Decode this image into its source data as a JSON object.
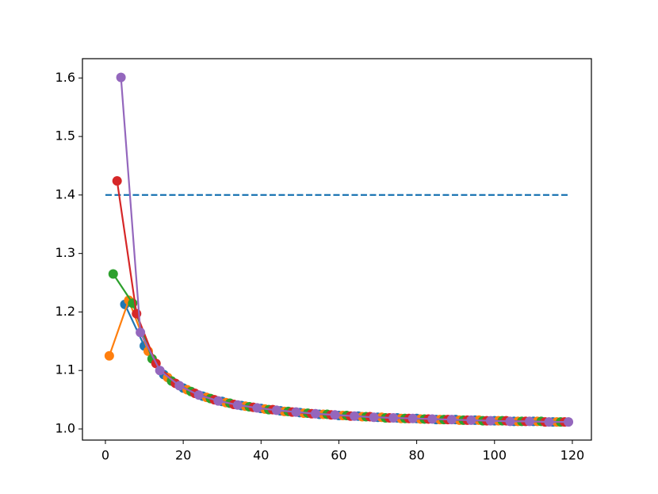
{
  "chart_data": {
    "type": "line",
    "xlim": [
      -5.9,
      124.9
    ],
    "ylim": [
      0.981,
      1.633
    ],
    "xticks": [
      0,
      20,
      40,
      60,
      80,
      100,
      120
    ],
    "yticks": [
      {
        "value": 1,
        "label": "1.0"
      },
      1.1,
      1.2,
      1.3,
      1.4,
      1.5,
      1.6
    ],
    "series": [
      {
        "color": "#1f77b4",
        "linestyle": "dashed",
        "marker": false,
        "x": [
          0,
          119
        ],
        "values": [
          1.4,
          1.4
        ]
      },
      {
        "color": "#1f77b4",
        "linestyle": "solid",
        "marker": true,
        "x": [
          5,
          10,
          15,
          20,
          25,
          30,
          35,
          40,
          45,
          50,
          55,
          60,
          65,
          70,
          75,
          80,
          85,
          90,
          95,
          100,
          105,
          110,
          115
        ],
        "values": [
          1.213,
          1.142,
          1.093,
          1.07,
          1.056,
          1.047,
          1.04,
          1.035,
          1.031,
          1.028,
          1.025,
          1.023,
          1.022,
          1.02,
          1.019,
          1.018,
          1.016,
          1.016,
          1.015,
          1.014,
          1.013,
          1.013,
          1.012
        ]
      },
      {
        "color": "#ff7f0e",
        "linestyle": "solid",
        "marker": true,
        "x": [
          1,
          6,
          11,
          16,
          21,
          26,
          31,
          36,
          41,
          46,
          51,
          56,
          61,
          66,
          71,
          76,
          81,
          86,
          91,
          96,
          101,
          106,
          111,
          116
        ],
        "values": [
          1.125,
          1.22,
          1.133,
          1.088,
          1.067,
          1.054,
          1.045,
          1.039,
          1.034,
          1.03,
          1.027,
          1.025,
          1.023,
          1.021,
          1.02,
          1.018,
          1.017,
          1.016,
          1.015,
          1.015,
          1.014,
          1.013,
          1.013,
          1.012
        ]
      },
      {
        "color": "#2ca02c",
        "linestyle": "solid",
        "marker": true,
        "x": [
          2,
          7,
          12,
          17,
          22,
          27,
          32,
          37,
          42,
          47,
          52,
          57,
          62,
          67,
          72,
          77,
          82,
          87,
          92,
          97,
          102,
          107,
          112,
          117
        ],
        "values": [
          1.265,
          1.215,
          1.12,
          1.082,
          1.064,
          1.052,
          1.044,
          1.038,
          1.033,
          1.03,
          1.027,
          1.025,
          1.023,
          1.021,
          1.019,
          1.018,
          1.017,
          1.016,
          1.015,
          1.014,
          1.014,
          1.013,
          1.013,
          1.012
        ]
      },
      {
        "color": "#d62728",
        "linestyle": "solid",
        "marker": true,
        "x": [
          3,
          8,
          13,
          18,
          23,
          28,
          33,
          38,
          43,
          48,
          53,
          58,
          63,
          68,
          73,
          78,
          83,
          88,
          93,
          98,
          103,
          108,
          113,
          118
        ],
        "values": [
          1.424,
          1.197,
          1.112,
          1.078,
          1.061,
          1.05,
          1.042,
          1.037,
          1.033,
          1.029,
          1.026,
          1.024,
          1.022,
          1.021,
          1.019,
          1.018,
          1.017,
          1.016,
          1.015,
          1.014,
          1.014,
          1.013,
          1.012,
          1.012
        ]
      },
      {
        "color": "#9467bd",
        "linestyle": "solid",
        "marker": true,
        "x": [
          4,
          9,
          14,
          19,
          24,
          29,
          34,
          39,
          44,
          49,
          54,
          59,
          64,
          69,
          74,
          79,
          84,
          89,
          94,
          99,
          104,
          109,
          114,
          119
        ],
        "values": [
          1.601,
          1.165,
          1.1,
          1.074,
          1.058,
          1.048,
          1.041,
          1.036,
          1.032,
          1.029,
          1.026,
          1.024,
          1.022,
          1.02,
          1.019,
          1.018,
          1.017,
          1.016,
          1.015,
          1.014,
          1.013,
          1.013,
          1.012,
          1.012
        ]
      }
    ]
  }
}
